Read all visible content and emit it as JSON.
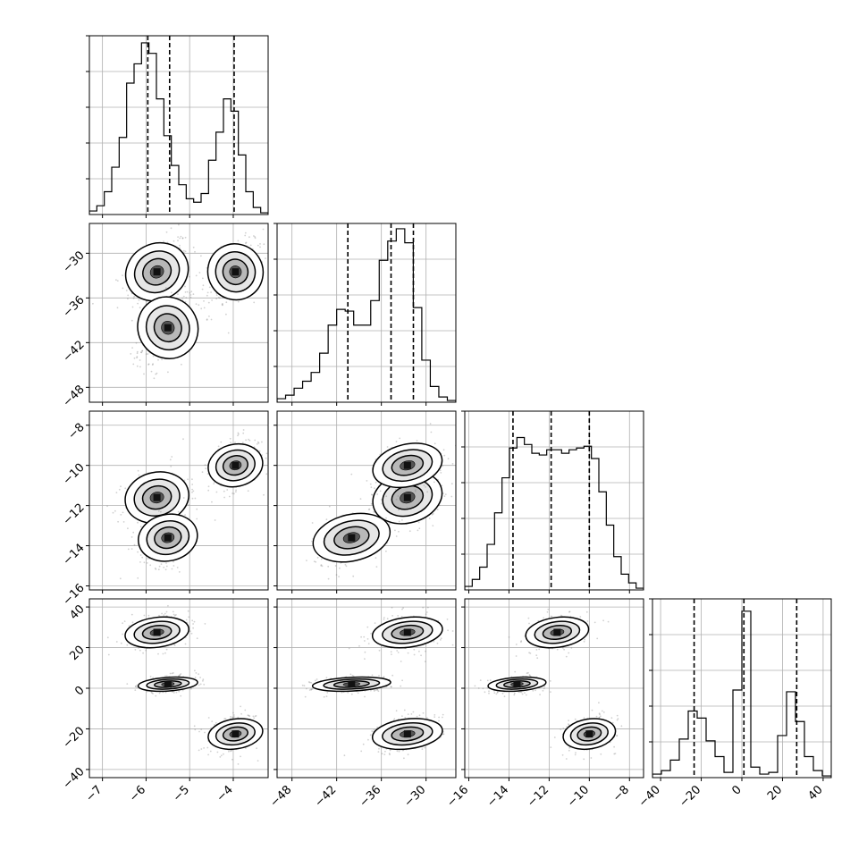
{
  "chart_data": {
    "type": "corner",
    "title": "",
    "grid": true,
    "colors": {
      "line": "#000000",
      "grid": "#b0b0b0",
      "scatter": "#7a7a7a"
    },
    "params": [
      {
        "range": [
          -7.3,
          -3.2
        ],
        "ticks": [
          -7,
          -6,
          -5,
          -4
        ],
        "tick_labels": [
          "−7",
          "−6",
          "−5",
          "−4"
        ],
        "quantiles": [
          -5.96,
          -5.46,
          -3.98
        ]
      },
      {
        "range": [
          -50,
          -26
        ],
        "ticks": [
          -48,
          -42,
          -36,
          -30
        ],
        "tick_labels": [
          "−48",
          "−42",
          "−36",
          "−30"
        ],
        "quantiles": [
          -40.5,
          -34.7,
          -31.7
        ]
      },
      {
        "range": [
          -16.2,
          -7.3
        ],
        "ticks": [
          -16,
          -14,
          -12,
          -10,
          -8
        ],
        "tick_labels": [
          "−16",
          "−14",
          "−12",
          "−10",
          "−8"
        ],
        "quantiles": [
          -13.8,
          -11.9,
          -10.0
        ]
      },
      {
        "range": [
          -44,
          44
        ],
        "ticks": [
          -40,
          -20,
          0,
          20,
          40
        ],
        "tick_labels": [
          "−40",
          "−20",
          "0",
          "20",
          "40"
        ],
        "quantiles": [
          -23.5,
          1.0,
          27.0
        ]
      }
    ],
    "histograms": [
      [
        0.02,
        0.05,
        0.13,
        0.27,
        0.44,
        0.75,
        0.86,
        0.98,
        0.92,
        0.66,
        0.45,
        0.28,
        0.17,
        0.09,
        0.07,
        0.12,
        0.31,
        0.47,
        0.66,
        0.59,
        0.34,
        0.13,
        0.04,
        0.01
      ],
      [
        0.02,
        0.04,
        0.08,
        0.12,
        0.17,
        0.28,
        0.44,
        0.53,
        0.52,
        0.44,
        0.44,
        0.58,
        0.81,
        0.92,
        0.99,
        0.91,
        0.54,
        0.24,
        0.09,
        0.03,
        0.01
      ],
      [
        0.02,
        0.06,
        0.13,
        0.26,
        0.44,
        0.64,
        0.81,
        0.87,
        0.83,
        0.78,
        0.77,
        0.8,
        0.8,
        0.78,
        0.8,
        0.81,
        0.82,
        0.75,
        0.56,
        0.37,
        0.19,
        0.09,
        0.04,
        0.01
      ],
      [
        0.02,
        0.04,
        0.1,
        0.22,
        0.38,
        0.34,
        0.21,
        0.12,
        0.03,
        0.5,
        0.95,
        0.06,
        0.02,
        0.03,
        0.24,
        0.49,
        0.32,
        0.12,
        0.04,
        0.01
      ]
    ],
    "clusters": [
      {
        "center": [
          -5.75,
          -32.5,
          -11.6,
          27.5
        ],
        "spread": [
          0.28,
          1.8,
          0.6,
          3.5
        ],
        "weight": 1.0
      },
      {
        "center": [
          -5.5,
          -40.0,
          -13.6,
          2.0
        ],
        "spread": [
          0.26,
          2.0,
          0.55,
          1.6
        ],
        "weight": 1.1
      },
      {
        "center": [
          -3.95,
          -32.5,
          -10.0,
          -22.5
        ],
        "spread": [
          0.24,
          1.8,
          0.5,
          3.5
        ],
        "weight": 1.0
      }
    ]
  }
}
